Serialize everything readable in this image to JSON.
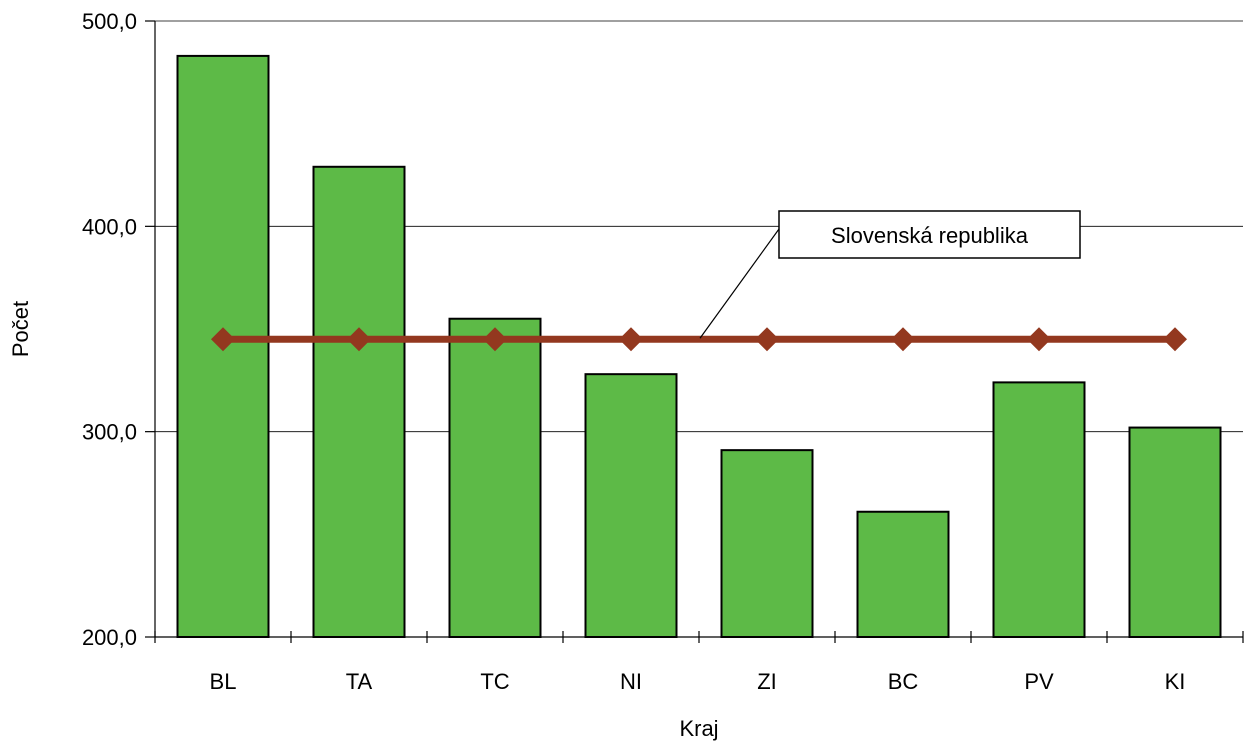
{
  "chart_data": {
    "type": "bar",
    "title": "",
    "xlabel": "Kraj",
    "ylabel": "Počet",
    "categories": [
      "BL",
      "TA",
      "TC",
      "NI",
      "ZI",
      "BC",
      "PV",
      "KI"
    ],
    "values": [
      483,
      429,
      355,
      328,
      291,
      261,
      324,
      302
    ],
    "ylim": [
      200,
      500
    ],
    "yticks": [
      200,
      300,
      400,
      500
    ],
    "ytick_labels": [
      "200,0",
      "300,0",
      "400,0",
      "500,0"
    ],
    "grid": true,
    "reference_line": {
      "label": "Slovenská republika",
      "value": 345
    },
    "colors": {
      "bar_fill": "#5dba47",
      "bar_stroke": "#000000",
      "line": "#93381f",
      "grid": "#000000"
    }
  }
}
